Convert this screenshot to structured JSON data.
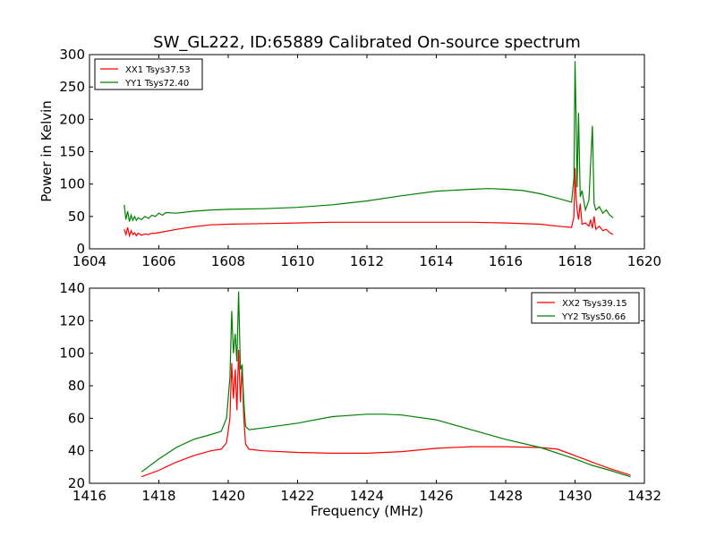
{
  "figure": {
    "title": "SW_GL222, ID:65889 Calibrated On-source spectrum"
  },
  "chart_data": [
    {
      "type": "line",
      "id": "top",
      "title": "SW_GL222, ID:65889 Calibrated On-source spectrum",
      "xlabel": "",
      "ylabel": "Power in Kelvin",
      "xlim": [
        1604,
        1620
      ],
      "ylim": [
        0,
        300
      ],
      "xticks": [
        1604,
        1606,
        1608,
        1610,
        1612,
        1614,
        1616,
        1618,
        1620
      ],
      "yticks": [
        0,
        50,
        100,
        150,
        200,
        250,
        300
      ],
      "grid": false,
      "legend_position": "upper-left",
      "series": [
        {
          "name": "XX1 Tsys37.53",
          "color": "#ff0000",
          "x": [
            1605.0,
            1605.05,
            1605.1,
            1605.15,
            1605.2,
            1605.25,
            1605.3,
            1605.35,
            1605.4,
            1605.5,
            1605.6,
            1605.7,
            1605.8,
            1605.9,
            1606.0,
            1606.2,
            1606.5,
            1607.0,
            1607.5,
            1608.0,
            1609.0,
            1610.0,
            1611.0,
            1612.0,
            1613.0,
            1614.0,
            1615.0,
            1616.0,
            1617.0,
            1617.5,
            1617.9,
            1617.97,
            1618.0,
            1618.03,
            1618.06,
            1618.1,
            1618.15,
            1618.2,
            1618.3,
            1618.4,
            1618.45,
            1618.5,
            1618.55,
            1618.6,
            1618.7,
            1618.8,
            1618.9,
            1619.0,
            1619.1
          ],
          "y": [
            30,
            22,
            33,
            20,
            28,
            22,
            25,
            20,
            24,
            21,
            23,
            22,
            24,
            24,
            25,
            27,
            30,
            34,
            37,
            38,
            39,
            40,
            41,
            41,
            41,
            41,
            41,
            40,
            38,
            35,
            33,
            50,
            125,
            80,
            60,
            45,
            70,
            38,
            40,
            35,
            45,
            32,
            50,
            30,
            35,
            28,
            30,
            25,
            22
          ]
        },
        {
          "name": "YY1 Tsys72.40",
          "color": "#008000",
          "x": [
            1605.0,
            1605.05,
            1605.1,
            1605.15,
            1605.2,
            1605.25,
            1605.3,
            1605.35,
            1605.4,
            1605.5,
            1605.6,
            1605.7,
            1605.8,
            1605.9,
            1606.0,
            1606.1,
            1606.2,
            1606.5,
            1607.0,
            1607.5,
            1608.0,
            1609.0,
            1610.0,
            1611.0,
            1612.0,
            1613.0,
            1614.0,
            1615.0,
            1615.5,
            1616.0,
            1616.5,
            1617.0,
            1617.5,
            1617.9,
            1617.97,
            1618.0,
            1618.03,
            1618.06,
            1618.1,
            1618.15,
            1618.2,
            1618.3,
            1618.4,
            1618.5,
            1618.55,
            1618.6,
            1618.7,
            1618.8,
            1618.9,
            1619.0,
            1619.1
          ],
          "y": [
            68,
            45,
            58,
            42,
            52,
            44,
            50,
            44,
            48,
            45,
            50,
            47,
            52,
            50,
            55,
            52,
            56,
            55,
            58,
            60,
            61,
            62,
            64,
            68,
            74,
            82,
            89,
            92,
            93,
            92,
            90,
            85,
            78,
            72,
            110,
            290,
            200,
            95,
            210,
            80,
            90,
            60,
            75,
            190,
            70,
            60,
            65,
            55,
            60,
            52,
            48
          ]
        }
      ]
    },
    {
      "type": "line",
      "id": "bottom",
      "title": "",
      "xlabel": "Frequency (MHz)",
      "ylabel": "",
      "xlim": [
        1416,
        1432
      ],
      "ylim": [
        20,
        140
      ],
      "xticks": [
        1416,
        1418,
        1420,
        1422,
        1424,
        1426,
        1428,
        1430,
        1432
      ],
      "yticks": [
        20,
        40,
        60,
        80,
        100,
        120,
        140
      ],
      "grid": false,
      "legend_position": "upper-right",
      "series": [
        {
          "name": "XX2 Tsys39.15",
          "color": "#ff0000",
          "x": [
            1417.5,
            1418.0,
            1418.5,
            1419.0,
            1419.5,
            1419.8,
            1419.95,
            1420.05,
            1420.1,
            1420.15,
            1420.2,
            1420.25,
            1420.3,
            1420.35,
            1420.4,
            1420.45,
            1420.5,
            1420.6,
            1421.0,
            1422.0,
            1423.0,
            1424.0,
            1425.0,
            1426.0,
            1427.0,
            1428.0,
            1429.0,
            1429.5,
            1430.0,
            1430.5,
            1431.0,
            1431.6
          ],
          "y": [
            24,
            28,
            33,
            37,
            40,
            41,
            45,
            60,
            94,
            72,
            90,
            65,
            102,
            70,
            93,
            60,
            44,
            41,
            40,
            39,
            38.5,
            38.5,
            39.5,
            41.5,
            42.5,
            42.5,
            42,
            41,
            37,
            33,
            29,
            25
          ]
        },
        {
          "name": "YY2 Tsys50.66",
          "color": "#008000",
          "x": [
            1417.5,
            1418.0,
            1418.5,
            1419.0,
            1419.5,
            1419.8,
            1419.95,
            1420.05,
            1420.1,
            1420.15,
            1420.2,
            1420.25,
            1420.3,
            1420.35,
            1420.4,
            1420.45,
            1420.5,
            1420.6,
            1421.0,
            1422.0,
            1423.0,
            1424.0,
            1424.5,
            1425.0,
            1426.0,
            1427.0,
            1428.0,
            1429.0,
            1430.0,
            1430.5,
            1431.0,
            1431.6
          ],
          "y": [
            27,
            35,
            42,
            47,
            50,
            52,
            60,
            85,
            126,
            100,
            112,
            95,
            138,
            90,
            93,
            70,
            55,
            53,
            54,
            57,
            61,
            62.5,
            62.5,
            62,
            59,
            53,
            47,
            42,
            35,
            31,
            28,
            24
          ]
        }
      ]
    }
  ]
}
